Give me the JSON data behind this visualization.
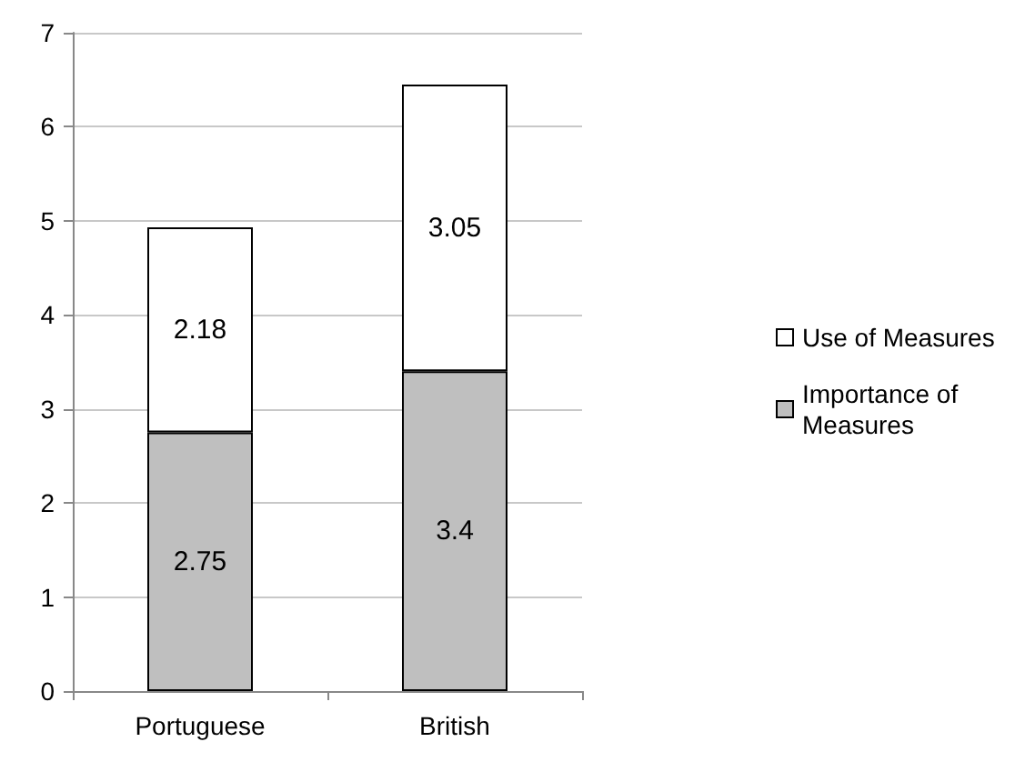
{
  "chart_data": {
    "type": "bar",
    "stacked": true,
    "categories": [
      "Portuguese",
      "British"
    ],
    "series": [
      {
        "name": "Importance of Measures",
        "color": "#bfbfbf",
        "values": [
          2.75,
          3.4
        ]
      },
      {
        "name": "Use of Measures",
        "color": "#ffffff",
        "values": [
          2.18,
          3.05
        ]
      }
    ],
    "ylim": [
      0,
      7
    ],
    "yticks": [
      0,
      1,
      2,
      3,
      4,
      5,
      6,
      7
    ],
    "grid": "y",
    "legend": "right",
    "data_labels": true
  }
}
